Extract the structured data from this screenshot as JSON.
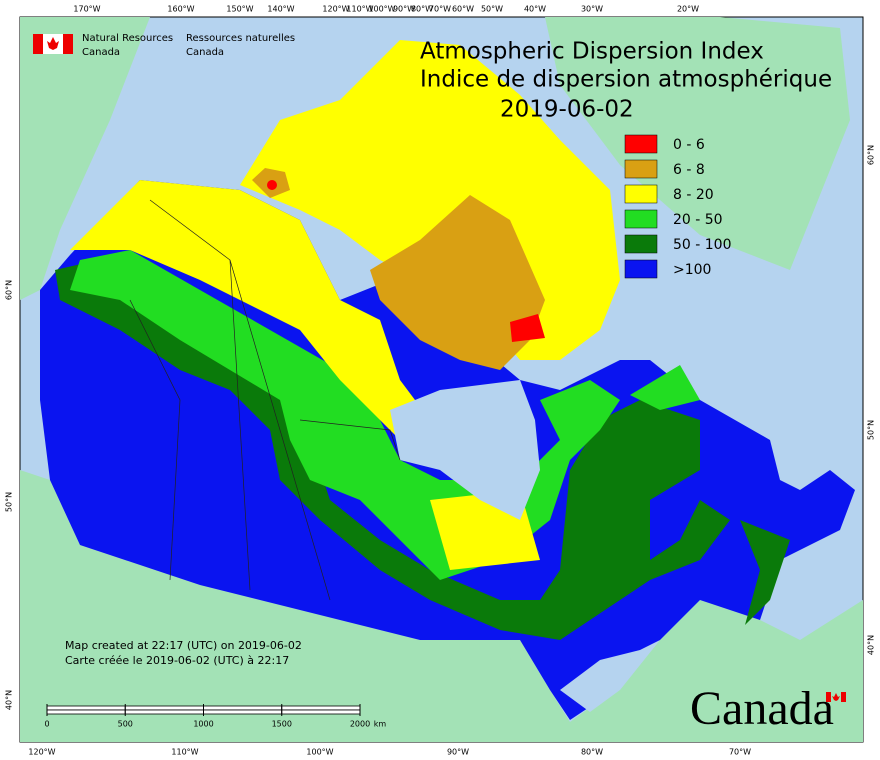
{
  "header": {
    "org_en": [
      "Natural Resources",
      "Canada"
    ],
    "org_fr": [
      "Ressources naturelles",
      "Canada"
    ],
    "title": [
      "Atmospheric Dispersion Index",
      "Indice de dispersion atmosphérique"
    ],
    "date": "2019-06-02"
  },
  "legend": [
    {
      "label": "0 - 6",
      "color": "#ff0000"
    },
    {
      "label": "6 - 8",
      "color": "#d9a013"
    },
    {
      "label": "8 - 20",
      "color": "#ffff00"
    },
    {
      "label": "20 - 50",
      "color": "#22dd22"
    },
    {
      "label": "50 - 100",
      "color": "#0a7a0a"
    },
    {
      "label": ">100",
      "color": "#0a14f0"
    }
  ],
  "footer": [
    "Map created at 22:17 (UTC) on 2019-06-02",
    "Carte créée le 2019-06-02 (UTC) à 22:17"
  ],
  "scale_bar": {
    "ticks": [
      0,
      500,
      1000,
      1500,
      2000
    ],
    "unit": "km"
  },
  "graticule": {
    "top": [
      "170°W",
      "160°W",
      "150°W",
      "140°W",
      "120°W",
      "110°W",
      "100°W",
      "90°W",
      "80°W",
      "70°W",
      "60°W",
      "50°W",
      "40°W",
      "30°W",
      "20°W"
    ],
    "bottom": [
      "120°W",
      "110°W",
      "100°W",
      "90°W",
      "80°W",
      "70°W"
    ],
    "left": [
      "60°N",
      "50°N",
      "40°N"
    ],
    "right": [
      "60°N",
      "50°N",
      "40°N"
    ]
  },
  "wordmark": "Canada"
}
